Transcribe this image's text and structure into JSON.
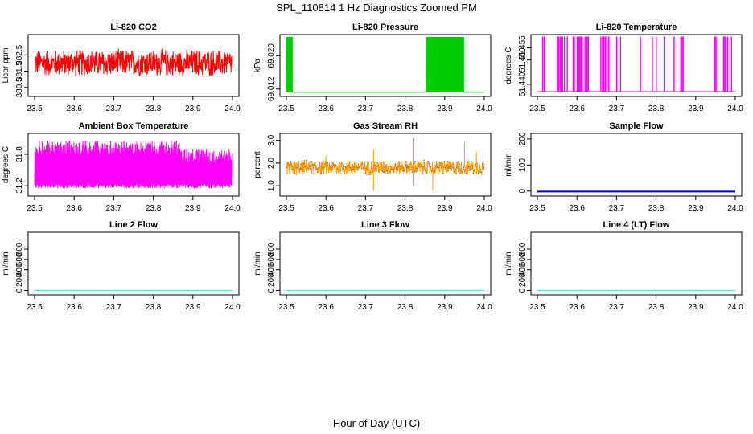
{
  "figure": {
    "title": "SPL_110814  1 Hz Diagnostics Zoomed PM",
    "xlabel": "Hour of Day (UTC)"
  },
  "chart_data": [
    {
      "type": "line",
      "title": "Li-820 CO2",
      "ylabel": "Licor ppm",
      "color": "#ff0000",
      "x_ticks": [
        "23.5",
        "23.6",
        "23.7",
        "23.8",
        "23.9",
        "24.0"
      ],
      "xlim": [
        23.5,
        24.0
      ],
      "y_ticks": [
        "380.5",
        "381.5",
        "382.5"
      ],
      "y_tick_values": [
        380.5,
        381.5,
        382.5
      ],
      "ylim": [
        380.1,
        383.6
      ],
      "series": [
        {
          "name": "Li-820 CO2",
          "pattern": "noise",
          "center": 382.0,
          "amplitude": 0.9
        }
      ]
    },
    {
      "type": "line",
      "title": "Li-820 Pressure",
      "ylabel": "kPa",
      "color": "#00cc00",
      "x_ticks": [
        "23.5",
        "23.6",
        "23.7",
        "23.8",
        "23.9",
        "24.0"
      ],
      "xlim": [
        23.5,
        24.0
      ],
      "y_ticks": [
        "69.012",
        "69.020"
      ],
      "y_tick_values": [
        69.012,
        69.02
      ],
      "ylim": [
        69.0108,
        69.0245
      ],
      "series": [
        {
          "name": "Li-820 Pressure",
          "pattern": "toggle",
          "low": 69.0112,
          "high": 69.0245,
          "bursts": [
            [
              23.5,
              23.515
            ],
            [
              23.853,
              23.948
            ]
          ]
        }
      ]
    },
    {
      "type": "line",
      "title": "Li-820 Temperature",
      "ylabel": "degrees C",
      "color": "#ff00ff",
      "x_ticks": [
        "23.5",
        "23.6",
        "23.7",
        "23.8",
        "23.9",
        "24.0"
      ],
      "xlim": [
        23.5,
        24.0
      ],
      "y_ticks": [
        "51.440",
        "51.450",
        "51.455"
      ],
      "y_tick_values": [
        51.44,
        51.45,
        51.455
      ],
      "ylim": [
        51.436,
        51.4595
      ],
      "series": [
        {
          "name": "Li-820 Temperature",
          "pattern": "spikes",
          "low": 51.437,
          "high": 51.4595,
          "spike_x": [
            23.513,
            23.517,
            23.55,
            23.553,
            23.557,
            23.56,
            23.563,
            23.568,
            23.575,
            23.59,
            23.593,
            23.6,
            23.604,
            23.607,
            23.61,
            23.613,
            23.62,
            23.623,
            23.625,
            23.628,
            23.66,
            23.664,
            23.667,
            23.671,
            23.675,
            23.68,
            23.7,
            23.71,
            23.76,
            23.79,
            23.8,
            23.82,
            23.845,
            23.862,
            23.865,
            23.868,
            23.948,
            23.951,
            23.97,
            23.973,
            23.975,
            23.98,
            23.99
          ]
        }
      ]
    },
    {
      "type": "line",
      "title": "Ambient Box Temperature",
      "ylabel": "degrees C",
      "color": "#ff00ff",
      "x_ticks": [
        "23.5",
        "23.6",
        "23.7",
        "23.8",
        "23.9",
        "24.0"
      ],
      "xlim": [
        23.5,
        24.0
      ],
      "y_ticks": [
        "31.2",
        "31.8"
      ],
      "y_tick_values": [
        31.2,
        31.8
      ],
      "ylim": [
        31.05,
        32.15
      ],
      "series": [
        {
          "name": "Ambient Box Temperature",
          "pattern": "toggle_dense",
          "low": 31.15,
          "high": 32.05,
          "high_late": 31.9
        }
      ]
    },
    {
      "type": "scatter",
      "title": "Gas Stream RH",
      "ylabel": "percent",
      "color": "#ff9900",
      "point_color": "#cc6600",
      "x_ticks": [
        "23.5",
        "23.6",
        "23.7",
        "23.8",
        "23.9",
        "24.0"
      ],
      "xlim": [
        23.5,
        24.0
      ],
      "y_ticks": [
        "1.0",
        "2.0",
        "3.0"
      ],
      "y_tick_values": [
        1.0,
        2.0,
        3.0
      ],
      "ylim": [
        0.65,
        3.2
      ],
      "series": [
        {
          "name": "Gas Stream RH",
          "pattern": "noise",
          "center": 1.8,
          "amplitude": 0.35,
          "outliers": [
            [
              23.72,
              0.8
            ],
            [
              23.72,
              2.6
            ],
            [
              23.82,
              3.1
            ],
            [
              23.82,
              1.0
            ],
            [
              23.95,
              2.9
            ],
            [
              23.87,
              0.8
            ],
            [
              23.98,
              2.5
            ],
            [
              23.6,
              2.3
            ]
          ]
        }
      ]
    },
    {
      "type": "line",
      "title": "Sample Flow",
      "ylabel": "ml/min",
      "color": "#0000cc",
      "x_ticks": [
        "23.5",
        "23.6",
        "23.7",
        "23.8",
        "23.9",
        "24.0"
      ],
      "xlim": [
        23.5,
        24.0
      ],
      "y_ticks": [
        "0",
        "100",
        "200"
      ],
      "y_tick_values": [
        0,
        100,
        200
      ],
      "ylim": [
        -10,
        212
      ],
      "series": [
        {
          "name": "Sample Flow",
          "pattern": "flat",
          "value": -2
        }
      ]
    },
    {
      "type": "line",
      "title": "Line 2 Flow",
      "ylabel": "ml/min",
      "color": "#00ffff",
      "x_ticks": [
        "23.5",
        "23.6",
        "23.7",
        "23.8",
        "23.9",
        "24.0"
      ],
      "xlim": [
        23.5,
        24.0
      ],
      "y_ticks": [
        "0",
        "200",
        "400",
        "600",
        "800"
      ],
      "y_tick_values": [
        0,
        200,
        400,
        600,
        800
      ],
      "ylim": [
        -40,
        1080
      ],
      "series": [
        {
          "name": "Line 2 Flow",
          "pattern": "flat",
          "value": 0
        }
      ]
    },
    {
      "type": "line",
      "title": "Line 3 Flow",
      "ylabel": "ml/min",
      "color": "#00ffff",
      "x_ticks": [
        "23.5",
        "23.6",
        "23.7",
        "23.8",
        "23.9",
        "24.0"
      ],
      "xlim": [
        23.5,
        24.0
      ],
      "y_ticks": [
        "0",
        "200",
        "400",
        "600",
        "800"
      ],
      "y_tick_values": [
        0,
        200,
        400,
        600,
        800
      ],
      "ylim": [
        -40,
        1080
      ],
      "series": [
        {
          "name": "Line 3 Flow",
          "pattern": "flat",
          "value": 0
        }
      ]
    },
    {
      "type": "line",
      "title": "Line 4 (LT) Flow",
      "ylabel": "ml/min",
      "color": "#00ffff",
      "x_ticks": [
        "23.5",
        "23.6",
        "23.7",
        "23.8",
        "23.9",
        "24.0"
      ],
      "xlim": [
        23.5,
        24.0
      ],
      "y_ticks": [
        "0",
        "200",
        "400",
        "600",
        "800"
      ],
      "y_tick_values": [
        0,
        200,
        400,
        600,
        800
      ],
      "ylim": [
        -40,
        1080
      ],
      "series": [
        {
          "name": "Line 4 (LT) Flow",
          "pattern": "flat",
          "value": 0
        }
      ]
    }
  ]
}
